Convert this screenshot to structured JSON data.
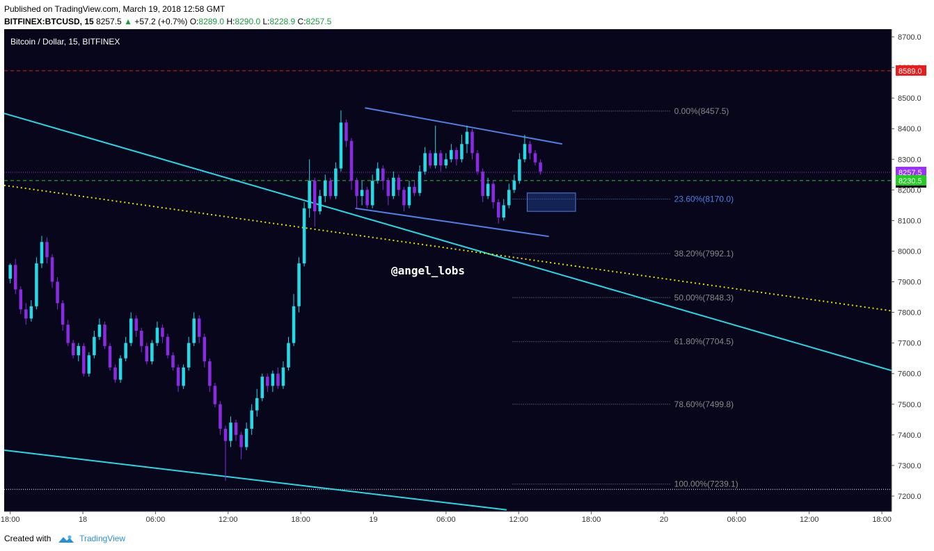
{
  "header": {
    "published": "Published on TradingView.com, March 19, 2018 12:58 GMT",
    "symbol": "BITFINEX:BTCUSD, 15",
    "last": "8257.5",
    "change": "+57.2 (+0.7%)",
    "o_label": "O:",
    "o_value": "8289.0",
    "h_label": "H:",
    "h_value": "8290.0",
    "l_label": "L:",
    "l_value": "8228.9",
    "c_label": "C:",
    "c_value": "8257.5"
  },
  "footer": {
    "created_with": "Created with",
    "brand": "TradingView"
  },
  "chart_data": {
    "type": "candlestick",
    "title": "Bitcoin / Dollar, 15, BITFINEX",
    "watermark": "@angel_lobs",
    "background": "#07061a",
    "colors": {
      "up": "#26d9e6",
      "down": "#8a2be2",
      "trendline": "#26d9e6",
      "channel": "#4f7fe6",
      "dotted": "#e6e600"
    },
    "ylim": [
      7150,
      8725
    ],
    "y_ticks": [
      8700,
      8600,
      8500,
      8400,
      8300,
      8200,
      8100,
      8000,
      7900,
      7800,
      7700,
      7600,
      7500,
      7400,
      7300,
      7200
    ],
    "x_ticks": [
      {
        "label": "18:00",
        "t": 0
      },
      {
        "label": "18",
        "t": 6
      },
      {
        "label": "06:00",
        "t": 12
      },
      {
        "label": "12:00",
        "t": 18
      },
      {
        "label": "18:00",
        "t": 24
      },
      {
        "label": "19",
        "t": 30
      },
      {
        "label": "06:00",
        "t": 36
      },
      {
        "label": "12:00",
        "t": 42
      },
      {
        "label": "18:00",
        "t": 48
      },
      {
        "label": "20",
        "t": 54
      },
      {
        "label": "06:00",
        "t": 60
      },
      {
        "label": "12:00",
        "t": 66
      },
      {
        "label": "18:00",
        "t": 72
      }
    ],
    "fib_levels": [
      {
        "label": "0.00%(8457.5)",
        "value": 8457.5
      },
      {
        "label": "23.60%(8170.0)",
        "value": 8170.0,
        "highlight": true
      },
      {
        "label": "38.20%(7992.1)",
        "value": 7992.1
      },
      {
        "label": "50.00%(7848.3)",
        "value": 7848.3
      },
      {
        "label": "61.80%(7704.5)",
        "value": 7704.5
      },
      {
        "label": "78.60%(7499.8)",
        "value": 7499.8
      },
      {
        "label": "100.00%(7239.1)",
        "value": 7239.1
      }
    ],
    "price_labels": [
      {
        "value": 8589.0,
        "text": "8589.0",
        "color": "#e61e1e",
        "line": "dashed"
      },
      {
        "value": 8257.5,
        "text": "8257.5",
        "color": "#9b30ff",
        "line": "dotted",
        "countdown": "01:57"
      },
      {
        "value": 8230.5,
        "text": "8230.5",
        "color": "#22cc22",
        "line": "dashed"
      }
    ],
    "hline_white": 7222,
    "lines": [
      {
        "name": "main-trendline",
        "color": "#26d9e6",
        "style": "solid",
        "p1": [
          -0.5,
          8450
        ],
        "p2": [
          72.8,
          7610
        ]
      },
      {
        "name": "lower-trendline",
        "color": "#26d9e6",
        "style": "solid",
        "p1": [
          -0.5,
          7350
        ],
        "p2": [
          41,
          7155
        ]
      },
      {
        "name": "dotted-trendline",
        "color": "#e6e600",
        "style": "dotted",
        "p1": [
          -0.5,
          8215
        ],
        "p2": [
          72.8,
          7805
        ]
      },
      {
        "name": "channel-upper",
        "color": "#4f7fe6",
        "style": "solid",
        "p1": [
          29.3,
          8468
        ],
        "p2": [
          45.6,
          8350
        ]
      },
      {
        "name": "channel-lower",
        "color": "#4f7fe6",
        "style": "solid",
        "p1": [
          28.5,
          8140
        ],
        "p2": [
          44.5,
          8048
        ]
      }
    ],
    "rect": {
      "t1": 42.7,
      "t2": 46.7,
      "v1": 8190,
      "v2": 8130
    },
    "candles": [
      [
        7910,
        7955,
        7895,
        7960
      ],
      [
        7955,
        7875,
        7860,
        7975
      ],
      [
        7875,
        7810,
        7795,
        7885
      ],
      [
        7810,
        7780,
        7760,
        7830
      ],
      [
        7780,
        7820,
        7770,
        7840
      ],
      [
        7820,
        7960,
        7810,
        7980
      ],
      [
        7960,
        8030,
        7945,
        8050
      ],
      [
        8030,
        7980,
        7960,
        8045
      ],
      [
        7980,
        7900,
        7880,
        7990
      ],
      [
        7900,
        7830,
        7810,
        7915
      ],
      [
        7830,
        7760,
        7740,
        7840
      ],
      [
        7760,
        7700,
        7690,
        7775
      ],
      [
        7700,
        7660,
        7650,
        7710
      ],
      [
        7660,
        7690,
        7640,
        7700
      ],
      [
        7690,
        7600,
        7590,
        7700
      ],
      [
        7600,
        7660,
        7590,
        7670
      ],
      [
        7660,
        7720,
        7650,
        7740
      ],
      [
        7720,
        7760,
        7710,
        7780
      ],
      [
        7760,
        7690,
        7680,
        7770
      ],
      [
        7690,
        7620,
        7610,
        7700
      ],
      [
        7620,
        7580,
        7570,
        7630
      ],
      [
        7580,
        7650,
        7570,
        7660
      ],
      [
        7650,
        7700,
        7640,
        7720
      ],
      [
        7700,
        7780,
        7690,
        7800
      ],
      [
        7780,
        7740,
        7720,
        7790
      ],
      [
        7740,
        7690,
        7670,
        7750
      ],
      [
        7690,
        7640,
        7630,
        7700
      ],
      [
        7640,
        7700,
        7630,
        7710
      ],
      [
        7700,
        7750,
        7690,
        7770
      ],
      [
        7750,
        7720,
        7700,
        7760
      ],
      [
        7720,
        7660,
        7650,
        7730
      ],
      [
        7660,
        7620,
        7610,
        7670
      ],
      [
        7620,
        7560,
        7540,
        7630
      ],
      [
        7560,
        7620,
        7550,
        7630
      ],
      [
        7620,
        7700,
        7610,
        7720
      ],
      [
        7700,
        7780,
        7690,
        7800
      ],
      [
        7780,
        7720,
        7700,
        7790
      ],
      [
        7720,
        7640,
        7620,
        7730
      ],
      [
        7640,
        7560,
        7540,
        7650
      ],
      [
        7560,
        7500,
        7490,
        7570
      ],
      [
        7500,
        7420,
        7400,
        7510
      ],
      [
        7420,
        7380,
        7250,
        7430
      ],
      [
        7380,
        7440,
        7360,
        7460
      ],
      [
        7440,
        7400,
        7380,
        7450
      ],
      [
        7400,
        7360,
        7320,
        7410
      ],
      [
        7360,
        7420,
        7350,
        7440
      ],
      [
        7420,
        7480,
        7400,
        7500
      ],
      [
        7480,
        7520,
        7460,
        7550
      ],
      [
        7520,
        7590,
        7510,
        7600
      ],
      [
        7590,
        7560,
        7540,
        7600
      ],
      [
        7560,
        7600,
        7540,
        7610
      ],
      [
        7600,
        7560,
        7550,
        7620
      ],
      [
        7560,
        7620,
        7550,
        7640
      ],
      [
        7620,
        7700,
        7610,
        7720
      ],
      [
        7700,
        7820,
        7690,
        7860
      ],
      [
        7820,
        7960,
        7800,
        7980
      ],
      [
        7960,
        8140,
        7950,
        8160
      ],
      [
        8140,
        8230,
        8110,
        8300
      ],
      [
        8230,
        8130,
        8080,
        8240
      ],
      [
        8130,
        8180,
        8120,
        8200
      ],
      [
        8180,
        8230,
        8160,
        8250
      ],
      [
        8230,
        8180,
        8170,
        8240
      ],
      [
        8180,
        8270,
        8170,
        8290
      ],
      [
        8270,
        8420,
        8260,
        8460
      ],
      [
        8420,
        8360,
        8340,
        8430
      ],
      [
        8360,
        8230,
        8200,
        8370
      ],
      [
        8230,
        8180,
        8140,
        8240
      ],
      [
        8180,
        8200,
        8150,
        8230
      ],
      [
        8200,
        8150,
        8140,
        8210
      ],
      [
        8150,
        8230,
        8140,
        8250
      ],
      [
        8230,
        8270,
        8220,
        8290
      ],
      [
        8270,
        8230,
        8200,
        8280
      ],
      [
        8230,
        8180,
        8150,
        8240
      ],
      [
        8180,
        8240,
        8170,
        8260
      ],
      [
        8240,
        8200,
        8180,
        8250
      ],
      [
        8200,
        8150,
        8130,
        8210
      ],
      [
        8150,
        8210,
        8140,
        8230
      ],
      [
        8210,
        8190,
        8180,
        8230
      ],
      [
        8190,
        8260,
        8180,
        8280
      ],
      [
        8260,
        8320,
        8250,
        8340
      ],
      [
        8320,
        8280,
        8270,
        8330
      ],
      [
        8280,
        8320,
        8270,
        8410
      ],
      [
        8320,
        8280,
        8260,
        8330
      ],
      [
        8280,
        8300,
        8270,
        8320
      ],
      [
        8300,
        8330,
        8290,
        8350
      ],
      [
        8330,
        8300,
        8280,
        8340
      ],
      [
        8300,
        8350,
        8290,
        8380
      ],
      [
        8350,
        8390,
        8320,
        8410
      ],
      [
        8390,
        8320,
        8300,
        8400
      ],
      [
        8320,
        8260,
        8250,
        8330
      ],
      [
        8260,
        8180,
        8160,
        8270
      ],
      [
        8180,
        8220,
        8170,
        8240
      ],
      [
        8220,
        8160,
        8140,
        8230
      ],
      [
        8160,
        8110,
        8090,
        8170
      ],
      [
        8110,
        8150,
        8100,
        8170
      ],
      [
        8150,
        8200,
        8140,
        8220
      ],
      [
        8200,
        8230,
        8190,
        8250
      ],
      [
        8230,
        8300,
        8220,
        8320
      ],
      [
        8300,
        8350,
        8290,
        8380
      ],
      [
        8350,
        8320,
        8300,
        8360
      ],
      [
        8320,
        8290,
        8280,
        8330
      ],
      [
        8290,
        8260,
        8250,
        8300
      ]
    ]
  }
}
